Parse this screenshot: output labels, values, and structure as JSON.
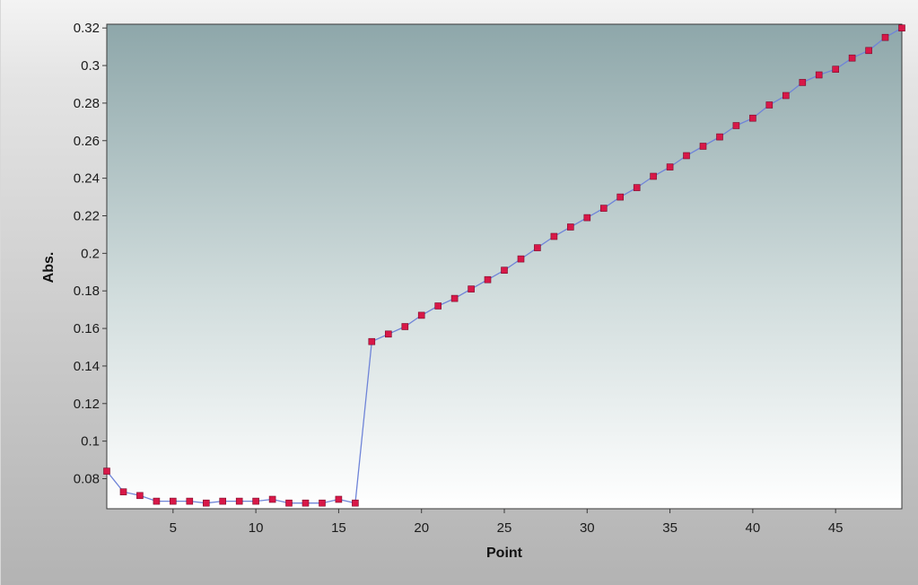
{
  "chart_data": {
    "type": "line",
    "title": "",
    "xlabel": "Point",
    "ylabel": "Abs.",
    "xlim": [
      1,
      49
    ],
    "ylim": [
      0.064,
      0.322
    ],
    "x_ticks": [
      5,
      10,
      15,
      20,
      25,
      30,
      35,
      40,
      45
    ],
    "y_ticks": [
      0.08,
      0.1,
      0.12,
      0.14,
      0.16,
      0.18,
      0.2,
      0.22,
      0.24,
      0.26,
      0.28,
      0.3,
      0.32
    ],
    "y_tick_labels": [
      "0.08",
      "0.1",
      "0.12",
      "0.14",
      "0.16",
      "0.18",
      "0.2",
      "0.22",
      "0.24",
      "0.26",
      "0.28",
      "0.3",
      "0.32"
    ],
    "grid": false,
    "series": [
      {
        "x": [
          1,
          2,
          3,
          4,
          5,
          6,
          7,
          8,
          9,
          10,
          11,
          12,
          13,
          14,
          15,
          16,
          17,
          18,
          19,
          20,
          21,
          22,
          23,
          24,
          25,
          26,
          27,
          28,
          29,
          30,
          31,
          32,
          33,
          34,
          35,
          36,
          37,
          38,
          39,
          40,
          41,
          42,
          43,
          44,
          45,
          46,
          47,
          48,
          49
        ],
        "values": [
          0.084,
          0.073,
          0.071,
          0.068,
          0.068,
          0.068,
          0.067,
          0.068,
          0.068,
          0.068,
          0.069,
          0.067,
          0.067,
          0.067,
          0.069,
          0.067,
          0.153,
          0.157,
          0.161,
          0.167,
          0.172,
          0.176,
          0.181,
          0.186,
          0.191,
          0.197,
          0.203,
          0.209,
          0.214,
          0.219,
          0.224,
          0.23,
          0.235,
          0.241,
          0.246,
          0.252,
          0.257,
          0.262,
          0.268,
          0.272,
          0.279,
          0.284,
          0.291,
          0.295,
          0.298,
          0.304,
          0.308,
          0.315,
          0.32
        ]
      }
    ],
    "line_color": "#6f84d8",
    "marker_color": "#d81848",
    "plot_gradient_top": "#8ea7aa",
    "plot_gradient_bottom": "#ffffff"
  }
}
